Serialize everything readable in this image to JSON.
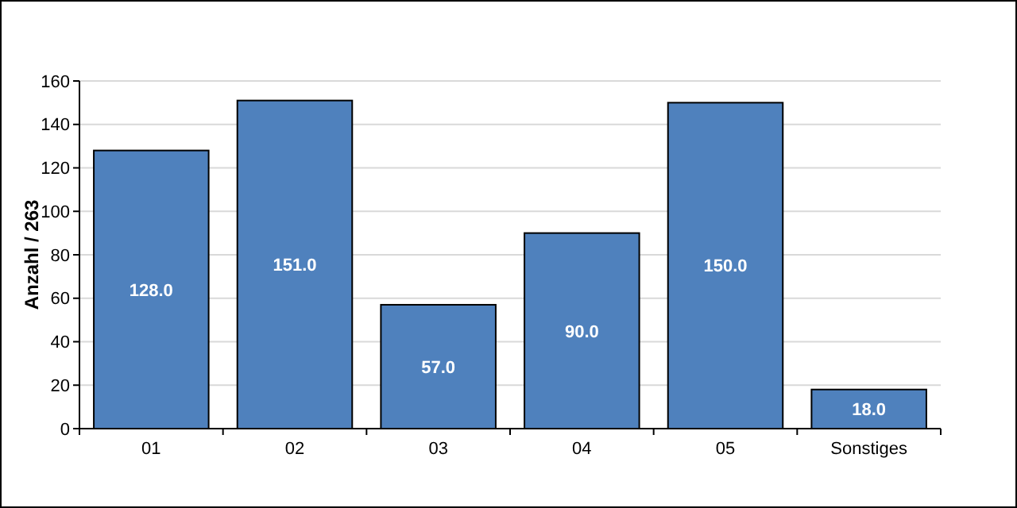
{
  "chart_data": {
    "type": "bar",
    "ylabel": "Anzahl / 263",
    "categories": [
      "01",
      "02",
      "03",
      "04",
      "05",
      "Sonstiges"
    ],
    "values": [
      128,
      151,
      57,
      90,
      150,
      18
    ],
    "value_labels": [
      "128.0",
      "151.0",
      "57.0",
      "90.0",
      "150.0",
      "18.0"
    ],
    "color": "#4f81bd",
    "ylim": [
      0,
      160
    ],
    "yticks": [
      0,
      20,
      40,
      60,
      80,
      100,
      120,
      140,
      160
    ],
    "grid": "y"
  }
}
